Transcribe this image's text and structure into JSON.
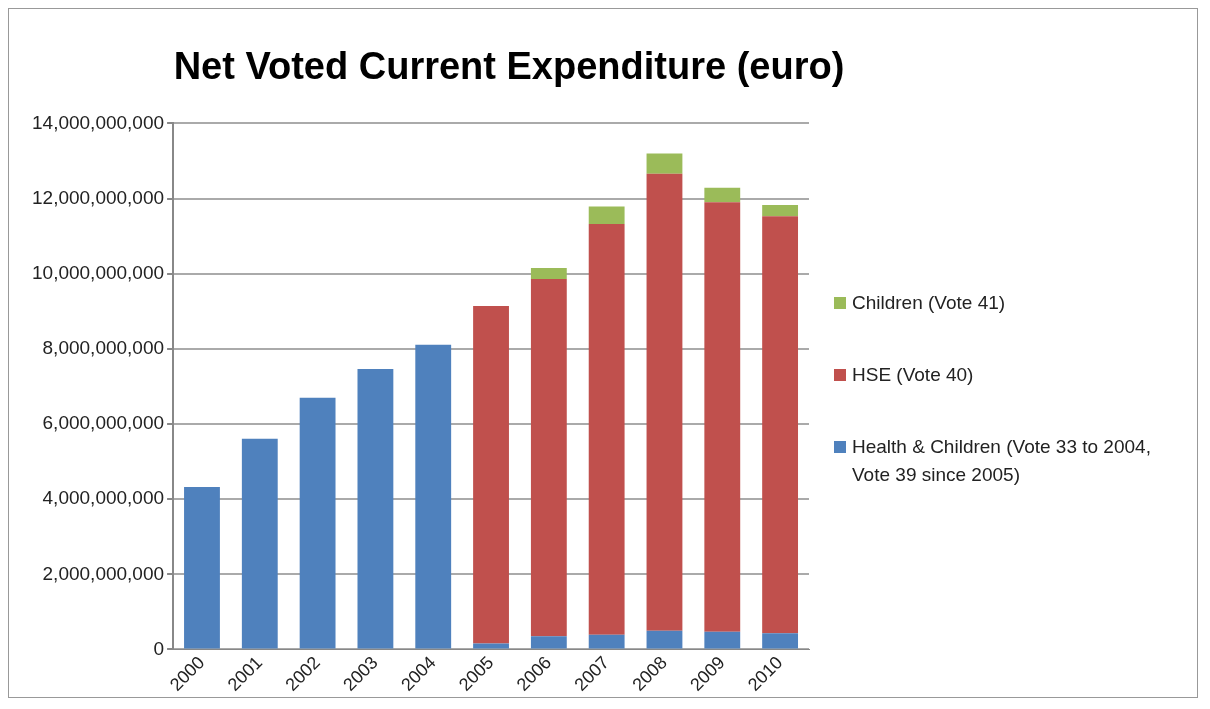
{
  "chart_data": {
    "type": "bar",
    "title": "Net Voted Current Expenditure (euro)",
    "stacked": true,
    "grid": "y",
    "legend": "right",
    "categories": [
      "2000",
      "2001",
      "2002",
      "2003",
      "2004",
      "2005",
      "2006",
      "2007",
      "2008",
      "2009",
      "2010"
    ],
    "ylim": [
      0,
      14000000000
    ],
    "yticks": [
      {
        "value": 0,
        "label": "0"
      },
      {
        "value": 2000000000,
        "label": "2,000,000,000"
      },
      {
        "value": 4000000000,
        "label": "4,000,000,000"
      },
      {
        "value": 6000000000,
        "label": "6,000,000,000"
      },
      {
        "value": 8000000000,
        "label": "8,000,000,000"
      },
      {
        "value": 10000000000,
        "label": "10,000,000,000"
      },
      {
        "value": 12000000000,
        "label": "12,000,000,000"
      },
      {
        "value": 14000000000,
        "label": "14,000,000,000"
      }
    ],
    "series": [
      {
        "name": "Health & Children (Vote 33 to 2004, Vote 39 since 2005)",
        "color": "#4f81bd",
        "values": [
          4320000000,
          5610000000,
          6700000000,
          7460000000,
          8110000000,
          160000000,
          350000000,
          390000000,
          500000000,
          470000000,
          430000000
        ]
      },
      {
        "name": "HSE (Vote 40)",
        "color": "#c0504d",
        "values": [
          null,
          null,
          null,
          null,
          null,
          8980000000,
          9510000000,
          10930000000,
          12160000000,
          11430000000,
          11100000000
        ]
      },
      {
        "name": "Children (Vote 41)",
        "color": "#9bbb59",
        "values": [
          null,
          null,
          null,
          null,
          null,
          null,
          290000000,
          470000000,
          540000000,
          390000000,
          300000000
        ]
      }
    ]
  }
}
